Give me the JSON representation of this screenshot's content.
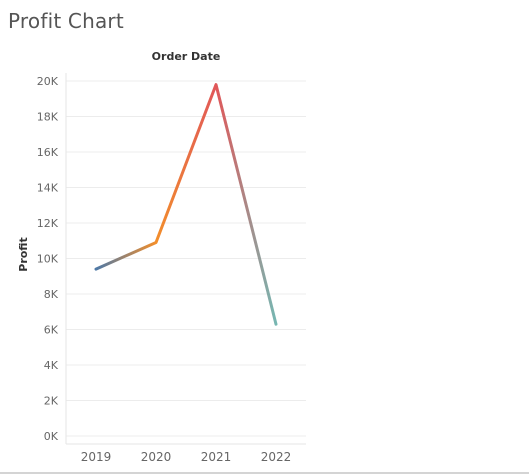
{
  "worksheet": {
    "title": "Profit Chart"
  },
  "chart_data": {
    "type": "line",
    "title": "",
    "column_header": "Order Date",
    "xlabel": "",
    "ylabel": "Profit",
    "categories": [
      "2019",
      "2020",
      "2021",
      "2022"
    ],
    "series": [
      {
        "values": [
          9400,
          10900,
          19800,
          6300
        ]
      }
    ],
    "y_ticks": [
      0,
      2000,
      4000,
      6000,
      8000,
      10000,
      12000,
      14000,
      16000,
      18000,
      20000
    ],
    "y_tick_labels": [
      "0K",
      "2K",
      "4K",
      "6K",
      "8K",
      "10K",
      "12K",
      "14K",
      "16K",
      "18K",
      "20K"
    ],
    "ylim": [
      0,
      20000
    ],
    "grid": true,
    "legend": "none",
    "colors": {
      "low": "#4e79a7",
      "mid": "#f28e2b",
      "high": "#e15759",
      "end": "#76b7b2",
      "grid": "#ececec",
      "axis_text": "#666666"
    }
  }
}
